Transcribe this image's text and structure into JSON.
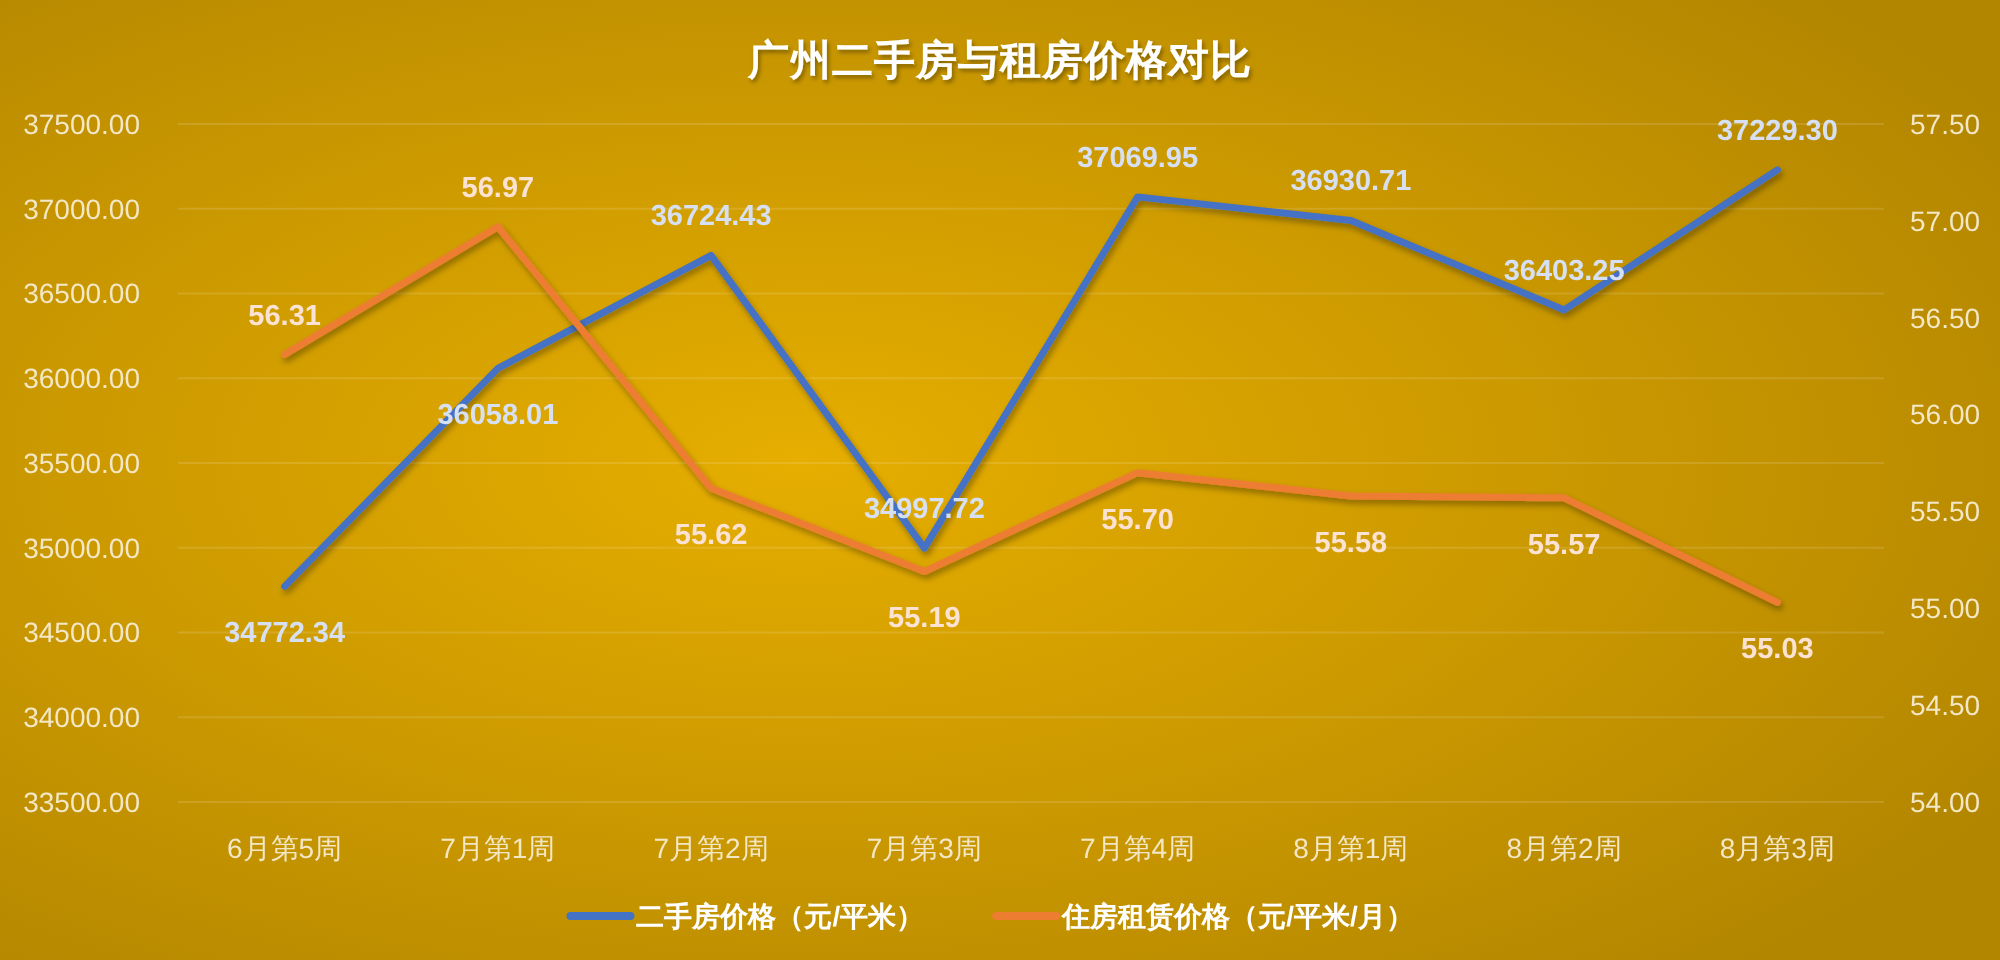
{
  "chart_data": {
    "type": "line",
    "title": "广州二手房与租房价格对比",
    "categories": [
      "6月第5周",
      "7月第1周",
      "7月第2周",
      "7月第3周",
      "7月第4周",
      "8月第1周",
      "8月第2周",
      "8月第3周"
    ],
    "series": [
      {
        "name": "二手房价格（元/平米）",
        "color": "#4472c4",
        "values": [
          34772.34,
          36058.01,
          36724.43,
          34997.72,
          37069.95,
          36930.71,
          36403.25,
          37229.3
        ],
        "value_labels": [
          "34772.34",
          "36058.01",
          "36724.43",
          "34997.72",
          "37069.95",
          "36930.71",
          "36403.25",
          "37229.30"
        ]
      },
      {
        "name": "住房租赁价格（元/平米/月）",
        "color": "#ed7d31",
        "axis": "y2",
        "values": [
          56.31,
          56.97,
          55.62,
          55.19,
          55.7,
          55.58,
          55.57,
          55.03
        ],
        "value_labels": [
          "56.31",
          "56.97",
          "55.62",
          "55.19",
          "55.70",
          "55.58",
          "55.57",
          "55.03"
        ]
      }
    ],
    "ylim": [
      33500,
      37500
    ],
    "yticks": [
      {
        "value": 33500,
        "label": "33500.00"
      },
      {
        "value": 34000,
        "label": "34000.00"
      },
      {
        "value": 34500,
        "label": "34500.00"
      },
      {
        "value": 35000,
        "label": "35000.00"
      },
      {
        "value": 35500,
        "label": "35500.00"
      },
      {
        "value": 36000,
        "label": "36000.00"
      },
      {
        "value": 36500,
        "label": "36500.00"
      },
      {
        "value": 37000,
        "label": "37000.00"
      },
      {
        "value": 37500,
        "label": "37500.00"
      }
    ],
    "y2lim": [
      54,
      57.5
    ],
    "y2ticks": [
      {
        "value": 54,
        "label": "54.00"
      },
      {
        "value": 54.5,
        "label": "54.50"
      },
      {
        "value": 55,
        "label": "55.00"
      },
      {
        "value": 55.5,
        "label": "55.50"
      },
      {
        "value": 56,
        "label": "56.00"
      },
      {
        "value": 56.5,
        "label": "56.50"
      },
      {
        "value": 57,
        "label": "57.00"
      },
      {
        "value": 57.5,
        "label": "57.50"
      }
    ],
    "grid": "y",
    "legend": "bottom",
    "marker": "none",
    "line_style": "solid"
  }
}
